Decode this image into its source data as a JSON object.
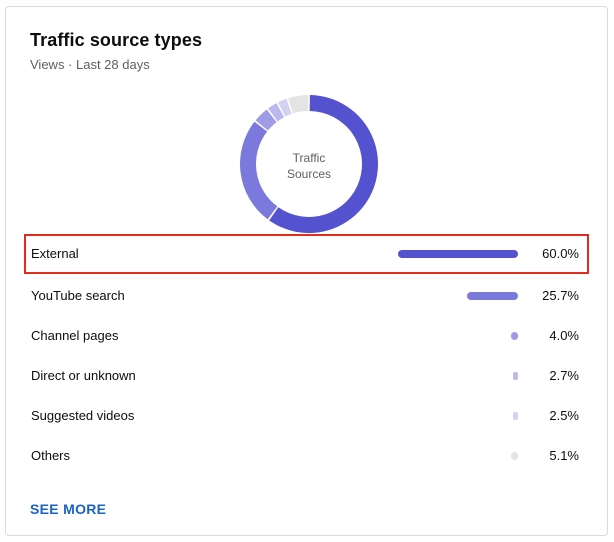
{
  "card": {
    "title": "Traffic source types",
    "subtitle": "Views · Last 28 days",
    "donut_label_line1": "Traffic",
    "donut_label_line2": "Sources",
    "see_more": "SEE MORE"
  },
  "highlight_color": "#e32c1c",
  "chart_data": {
    "type": "pie",
    "categories": [
      "External",
      "YouTube search",
      "Channel pages",
      "Direct or unknown",
      "Suggested videos",
      "Others"
    ],
    "values": [
      60.0,
      25.7,
      4.0,
      2.7,
      2.5,
      5.1
    ],
    "colors": [
      "#5552cf",
      "#7c79dc",
      "#9e9ce5",
      "#bab8ec",
      "#d3d2f3",
      "#e4e4e4"
    ],
    "labels": [
      "60.0%",
      "25.7%",
      "4.0%",
      "2.7%",
      "2.5%",
      "5.1%"
    ]
  },
  "rows": [
    {
      "name": "External",
      "pct": "60.0%"
    },
    {
      "name": "YouTube search",
      "pct": "25.7%"
    },
    {
      "name": "Channel pages",
      "pct": "4.0%"
    },
    {
      "name": "Direct or unknown",
      "pct": "2.7%"
    },
    {
      "name": "Suggested videos",
      "pct": "2.5%"
    },
    {
      "name": "Others",
      "pct": "5.1%"
    }
  ]
}
